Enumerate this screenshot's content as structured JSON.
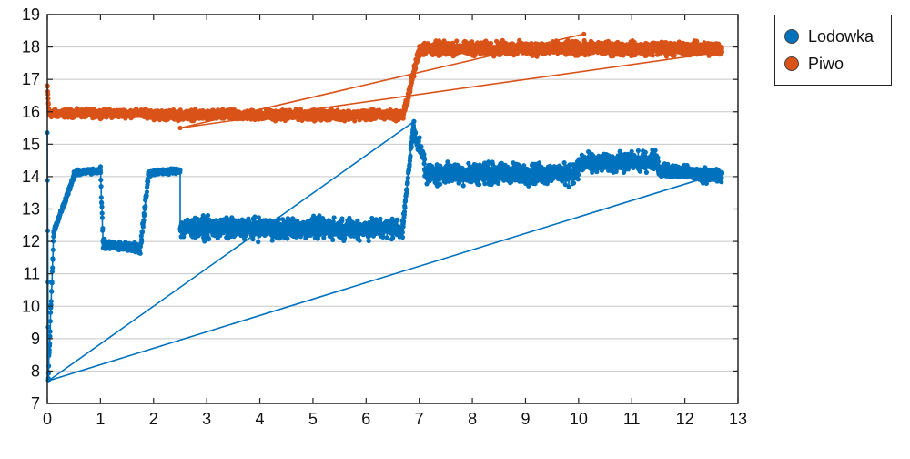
{
  "chart_data": {
    "type": "scatter",
    "title": "",
    "xlabel": "",
    "ylabel": "",
    "xlim": [
      0,
      13
    ],
    "ylim": [
      7,
      19
    ],
    "x_ticks": [
      "0",
      "1",
      "2",
      "3",
      "4",
      "5",
      "6",
      "7",
      "8",
      "9",
      "10",
      "11",
      "12",
      "13"
    ],
    "y_ticks": [
      "7",
      "8",
      "9",
      "10",
      "11",
      "12",
      "13",
      "14",
      "15",
      "16",
      "17",
      "18",
      "19"
    ],
    "grid": "horizontal",
    "legend_position": "top-right-outside",
    "series": [
      {
        "name": "Lodowka",
        "color": "#0072BD",
        "segments": [
          {
            "x0": 0.0,
            "x1": 0.02,
            "y0": 15.3,
            "y1": 7.8,
            "noise": 0.3
          },
          {
            "x0": 0.02,
            "x1": 0.12,
            "y0": 7.8,
            "y1": 12.3,
            "noise": 0.3
          },
          {
            "x0": 0.12,
            "x1": 0.5,
            "y0": 12.3,
            "y1": 14.0,
            "noise": 0.12
          },
          {
            "x0": 0.5,
            "x1": 1.0,
            "y0": 14.1,
            "y1": 14.2,
            "noise": 0.12
          },
          {
            "x0": 1.0,
            "x1": 1.05,
            "y0": 14.2,
            "y1": 12.0,
            "noise": 0.3
          },
          {
            "x0": 1.05,
            "x1": 1.75,
            "y0": 11.9,
            "y1": 11.8,
            "noise": 0.2
          },
          {
            "x0": 1.75,
            "x1": 1.9,
            "y0": 11.8,
            "y1": 14.0,
            "noise": 0.3
          },
          {
            "x0": 1.9,
            "x1": 2.5,
            "y0": 14.1,
            "y1": 14.2,
            "noise": 0.12
          },
          {
            "x0": 2.5,
            "x1": 6.7,
            "y0": 12.4,
            "y1": 12.4,
            "noise": 0.45
          },
          {
            "x0": 6.7,
            "x1": 6.9,
            "y0": 12.6,
            "y1": 15.7,
            "noise": 0.2
          },
          {
            "x0": 6.9,
            "x1": 7.1,
            "y0": 15.4,
            "y1": 14.5,
            "noise": 0.3
          },
          {
            "x0": 7.1,
            "x1": 10.0,
            "y0": 14.1,
            "y1": 14.1,
            "noise": 0.45
          },
          {
            "x0": 10.0,
            "x1": 11.5,
            "y0": 14.4,
            "y1": 14.5,
            "noise": 0.4
          },
          {
            "x0": 11.5,
            "x1": 12.7,
            "y0": 14.2,
            "y1": 14.0,
            "noise": 0.3
          }
        ],
        "min_point": {
          "x": 0.02,
          "y": 7.7
        },
        "max_point": {
          "x": 6.9,
          "y": 15.7
        }
      },
      {
        "name": "Piwo",
        "color": "#D95319",
        "segments": [
          {
            "x0": 0.0,
            "x1": 0.03,
            "y0": 16.8,
            "y1": 16.0,
            "noise": 0.15
          },
          {
            "x0": 0.03,
            "x1": 2.0,
            "y0": 15.95,
            "y1": 15.95,
            "noise": 0.18
          },
          {
            "x0": 2.0,
            "x1": 6.7,
            "y0": 15.9,
            "y1": 15.9,
            "noise": 0.22
          },
          {
            "x0": 6.7,
            "x1": 7.0,
            "y0": 15.9,
            "y1": 17.9,
            "noise": 0.25
          },
          {
            "x0": 7.0,
            "x1": 12.7,
            "y0": 17.95,
            "y1": 17.95,
            "noise": 0.3
          }
        ],
        "min_point": {
          "x": 2.5,
          "y": 15.5
        },
        "max_point": {
          "x": 10.1,
          "y": 18.4
        }
      }
    ]
  }
}
